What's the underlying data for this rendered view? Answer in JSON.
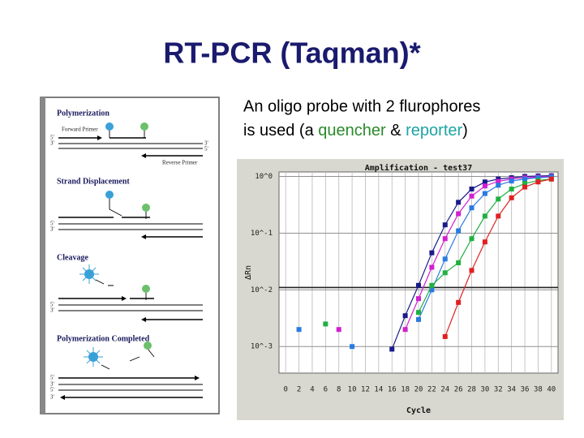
{
  "title": "RT-PCR (Taqman)*",
  "bullet": {
    "line1": "An oligo probe with 2 flurophores",
    "segments": [
      "is used (a ",
      "quencher",
      " & ",
      "reporter",
      ")"
    ]
  },
  "diagram": {
    "sections": [
      "Polymerization",
      "Strand Displacement",
      "Cleavage",
      "Polymerization Completed"
    ],
    "forward_primer": "Forward Primer",
    "reverse_primer": "Reverse Primer",
    "end_labels": [
      "5'",
      "3'"
    ]
  },
  "chart": {
    "type": "line",
    "title": "Amplification - test37",
    "xlabel": "Cycle",
    "ylabel": "ΔRn",
    "log_y": true,
    "grid": true,
    "xlim": [
      -1,
      41
    ],
    "ylim": [
      0.00034,
      1.2
    ],
    "xticks": [
      0,
      2,
      4,
      6,
      8,
      10,
      12,
      14,
      16,
      18,
      20,
      22,
      24,
      26,
      28,
      30,
      32,
      34,
      36,
      38,
      40
    ],
    "yticks": [
      {
        "value": 1,
        "label": "10^0"
      },
      {
        "value": 0.1,
        "label": "10^-1"
      },
      {
        "value": 0.01,
        "label": "10^-2"
      },
      {
        "value": 0.001,
        "label": "10^-3"
      }
    ],
    "threshold": 0.011,
    "x": [
      2,
      4,
      6,
      8,
      10,
      12,
      14,
      16,
      18,
      20,
      22,
      24,
      26,
      28,
      30,
      32,
      34,
      36,
      38,
      40
    ],
    "series": [
      {
        "color": "#1a1a8a",
        "values": [
          null,
          null,
          null,
          null,
          null,
          null,
          null,
          0.0009,
          0.0035,
          0.012,
          0.045,
          0.14,
          0.35,
          0.6,
          0.8,
          0.9,
          0.95,
          1.0,
          1.02,
          1.03
        ]
      },
      {
        "color": "#d020d0",
        "values": [
          null,
          null,
          null,
          0.002,
          null,
          null,
          null,
          null,
          0.002,
          0.007,
          0.025,
          0.08,
          0.22,
          0.45,
          0.68,
          0.82,
          0.9,
          0.95,
          0.98,
          1.0
        ]
      },
      {
        "color": "#2a7ae0",
        "values": [
          0.002,
          null,
          null,
          null,
          0.001,
          null,
          null,
          null,
          null,
          0.003,
          0.01,
          0.035,
          0.11,
          0.28,
          0.5,
          0.7,
          0.83,
          0.9,
          0.95,
          0.98
        ]
      },
      {
        "color": "#20b040",
        "values": [
          null,
          null,
          0.0025,
          null,
          null,
          null,
          null,
          null,
          null,
          0.004,
          0.012,
          0.02,
          0.03,
          0.08,
          0.2,
          0.4,
          0.6,
          0.75,
          0.85,
          0.9
        ]
      },
      {
        "color": "#e02020",
        "values": [
          null,
          null,
          null,
          null,
          null,
          null,
          null,
          null,
          null,
          null,
          null,
          0.0015,
          0.006,
          0.022,
          0.07,
          0.2,
          0.42,
          0.65,
          0.8,
          0.9
        ]
      }
    ]
  }
}
